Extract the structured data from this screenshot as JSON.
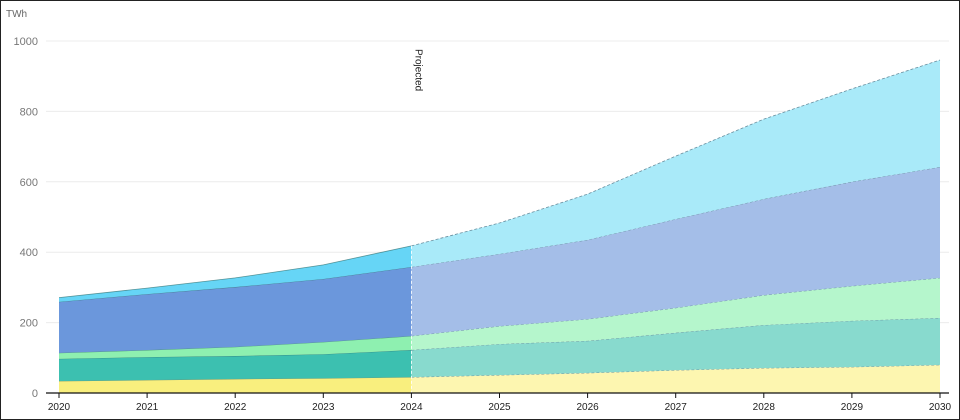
{
  "chart_data": {
    "type": "area",
    "stacked": true,
    "title": "",
    "xlabel": "",
    "ylabel": "TWh",
    "x": [
      2020,
      2021,
      2022,
      2023,
      2024,
      2025,
      2026,
      2027,
      2028,
      2029,
      2030
    ],
    "x_tick_labels": [
      "2020",
      "2021",
      "2022",
      "2023",
      "2024",
      "2025",
      "2026",
      "2027",
      "2028",
      "2029",
      "2030"
    ],
    "y_tick_labels": [
      "0",
      "200",
      "400",
      "600",
      "800",
      "1000"
    ],
    "y_ticks": [
      0,
      200,
      400,
      600,
      800,
      1000
    ],
    "ylim": [
      0,
      1000
    ],
    "xlim": [
      2020,
      2030
    ],
    "grid": true,
    "legend": "none",
    "annotation": {
      "label": "Projected",
      "x": 2024
    },
    "projected_from": 2024,
    "series": [
      {
        "color": "#f9ef7e",
        "projected_color": "#fdf6b0",
        "values": [
          34,
          37,
          40,
          42,
          45,
          51,
          57,
          65,
          71,
          74,
          80
        ]
      },
      {
        "color": "#3cc0b0",
        "projected_color": "#88dace",
        "values": [
          63,
          65,
          65,
          68,
          77,
          88,
          91,
          106,
          122,
          131,
          133
        ]
      },
      {
        "color": "#8ef0b0",
        "projected_color": "#b5f6cc",
        "values": [
          17,
          20,
          26,
          35,
          40,
          51,
          62,
          71,
          85,
          99,
          114
        ]
      },
      {
        "color": "#6b97dc",
        "projected_color": "#a4bee8",
        "values": [
          145,
          159,
          170,
          179,
          196,
          205,
          225,
          252,
          273,
          296,
          315
        ]
      },
      {
        "color": "#66d5f6",
        "projected_color": "#a9eaf9",
        "values": [
          12,
          17,
          26,
          40,
          60,
          88,
          130,
          179,
          227,
          264,
          304
        ]
      }
    ]
  }
}
